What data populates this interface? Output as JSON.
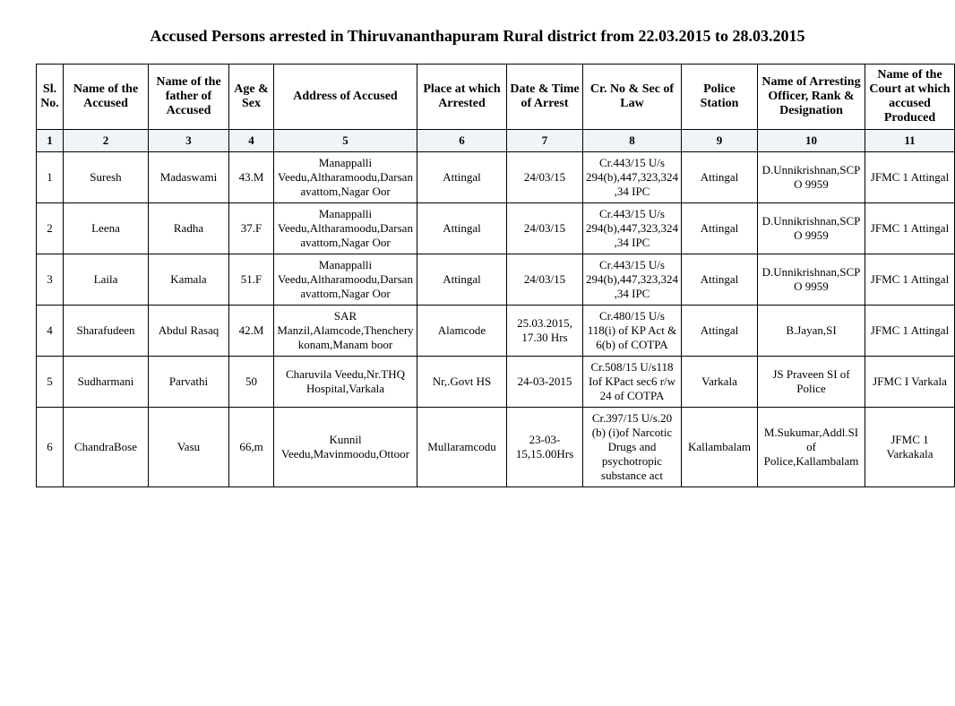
{
  "title": "Accused Persons arrested in  Thiruvananthapuram Rural district from  22.03.2015 to 28.03.2015",
  "headers": {
    "c1": "Sl. No.",
    "c2": "Name of the Accused",
    "c3": "Name of the father of Accused",
    "c4": "Age & Sex",
    "c5": "Address of Accused",
    "c6": "Place at which Arrested",
    "c7": "Date & Time of Arrest",
    "c8": "Cr. No & Sec of Law",
    "c9": "Police Station",
    "c10": "Name of Arresting Officer, Rank & Designation",
    "c11": "Name of the Court at which accused Produced"
  },
  "numrow": {
    "c1": "1",
    "c2": "2",
    "c3": "3",
    "c4": "4",
    "c5": "5",
    "c6": "6",
    "c7": "7",
    "c8": "8",
    "c9": "9",
    "c10": "10",
    "c11": "11"
  },
  "rows": [
    {
      "c1": "1",
      "c2": "Suresh",
      "c3": "Madaswami",
      "c4": "43.M",
      "c5": "Manappalli Veedu,Altharamoodu,Darsanavattom,Nagar Oor",
      "c6": "Attingal",
      "c7": "24/03/15",
      "c8": "Cr.443/15 U/s 294(b),447,323,324,34 IPC",
      "c9": "Attingal",
      "c10": "D.Unnikrishnan,SCPO 9959",
      "c11": "JFMC 1 Attingal"
    },
    {
      "c1": "2",
      "c2": "Leena",
      "c3": "Radha",
      "c4": "37.F",
      "c5": "Manappalli Veedu,Altharamoodu,Darsanavattom,Nagar Oor",
      "c6": "Attingal",
      "c7": "24/03/15",
      "c8": "Cr.443/15 U/s 294(b),447,323,324,34 IPC",
      "c9": "Attingal",
      "c10": "D.Unnikrishnan,SCPO 9959",
      "c11": "JFMC 1 Attingal"
    },
    {
      "c1": "3",
      "c2": "Laila",
      "c3": "Kamala",
      "c4": "51.F",
      "c5": "Manappalli Veedu,Altharamoodu,Darsanavattom,Nagar Oor",
      "c6": "Attingal",
      "c7": "24/03/15",
      "c8": "Cr.443/15 U/s 294(b),447,323,324,34 IPC",
      "c9": "Attingal",
      "c10": "D.Unnikrishnan,SCPO 9959",
      "c11": "JFMC 1 Attingal"
    },
    {
      "c1": "4",
      "c2": "Sharafudeen",
      "c3": "Abdul Rasaq",
      "c4": "42.M",
      "c5": "SAR Manzil,Alamcode,Thencherykonam,Manam boor",
      "c6": "Alamcode",
      "c7": "25.03.2015, 17.30 Hrs",
      "c8": "Cr.480/15 U/s 118(i) of KP Act & 6(b) of COTPA",
      "c9": "Attingal",
      "c10": "B.Jayan,SI",
      "c11": "JFMC 1 Attingal"
    },
    {
      "c1": "5",
      "c2": "Sudharmani",
      "c3": "Parvathi",
      "c4": "50",
      "c5": "Charuvila Veedu,Nr.THQ Hospital,Varkala",
      "c6": "Nr,.Govt HS",
      "c7": "24-03-2015",
      "c8": "Cr.508/15 U/s118 Iof KPact sec6 r/w 24 of COTPA",
      "c9": "Varkala",
      "c10": "JS Praveen SI of Police",
      "c11": "JFMC I Varkala"
    },
    {
      "c1": "6",
      "c2": "ChandraBose",
      "c3": "Vasu",
      "c4": "66,m",
      "c5": "Kunnil Veedu,Mavinmoodu,Ottoor",
      "c6": "Mullaramcodu",
      "c7": "23-03-15,15.00Hrs",
      "c8": "Cr.397/15 U/s.20 (b) (i)of Narcotic Drugs and psychotropic substance act",
      "c9": "Kallambalam",
      "c10": "M.Sukumar,Addl.SI of Police,Kallambalam",
      "c11": "JFMC 1 Varkakala"
    }
  ]
}
